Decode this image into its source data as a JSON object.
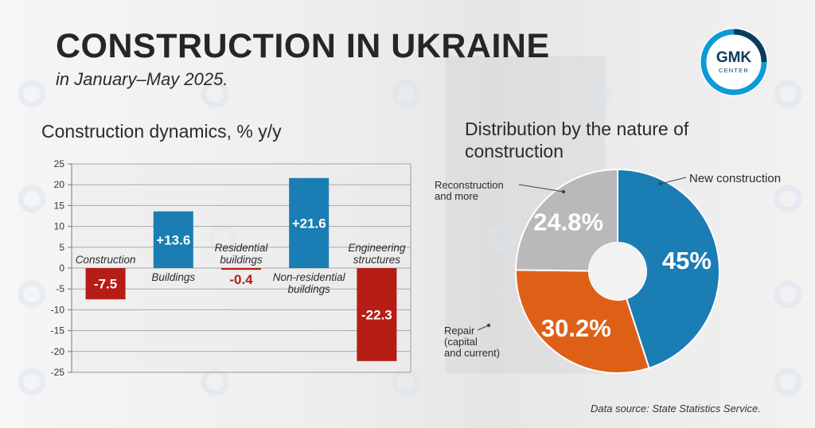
{
  "header": {
    "title": "CONSTRUCTION IN UKRAINE",
    "subtitle": "in January–May 2025."
  },
  "logo": {
    "line1": "GMK",
    "line2": "CENTER",
    "icon": "gmk-center-logo-icon"
  },
  "watermark_icon": "gmk-watermark-icon",
  "colors": {
    "positive": "#1a7db4",
    "negative": "#b51d16",
    "new_construction": "#1a7db4",
    "repair": "#de6016",
    "reconstruction": "#b9b9b9",
    "text": "#2b2b2b"
  },
  "source": "Data source: State Statistics Service.",
  "chart_data": [
    {
      "type": "bar",
      "title": "Construction dynamics, % y/y",
      "categories": [
        [
          "Construction"
        ],
        [
          "Buildings"
        ],
        [
          "Residential",
          "buildings"
        ],
        [
          "Non-residential",
          "buildings"
        ],
        [
          "Engineering",
          "structures"
        ]
      ],
      "values": [
        -7.5,
        13.6,
        -0.4,
        21.6,
        -22.3
      ],
      "value_labels": [
        "-7.5",
        "+13.6",
        "-0.4",
        "+21.6",
        "-22.3"
      ],
      "ylim": [
        -25,
        25
      ],
      "yticks": [
        25,
        20,
        15,
        10,
        5,
        0,
        -5,
        -10,
        -15,
        -20,
        -25
      ],
      "ytick_labels": [
        "25",
        "20",
        "15",
        "10",
        "5",
        "0",
        "-5",
        "-10",
        "-15",
        "-20",
        "-25"
      ],
      "grid": true
    },
    {
      "type": "pie",
      "donut": true,
      "title": "Distribution by the nature of construction",
      "slices": [
        {
          "label": [
            "New construction"
          ],
          "value": 45,
          "value_label": "45%",
          "color": "#1a7db4"
        },
        {
          "label": [
            "Repair",
            "(capital",
            "and current)"
          ],
          "value": 30.2,
          "value_label": "30.2%",
          "color": "#de6016"
        },
        {
          "label": [
            "Reconstruction",
            "and more"
          ],
          "value": 24.8,
          "value_label": "24.8%",
          "color": "#b9b9b9"
        }
      ]
    }
  ]
}
